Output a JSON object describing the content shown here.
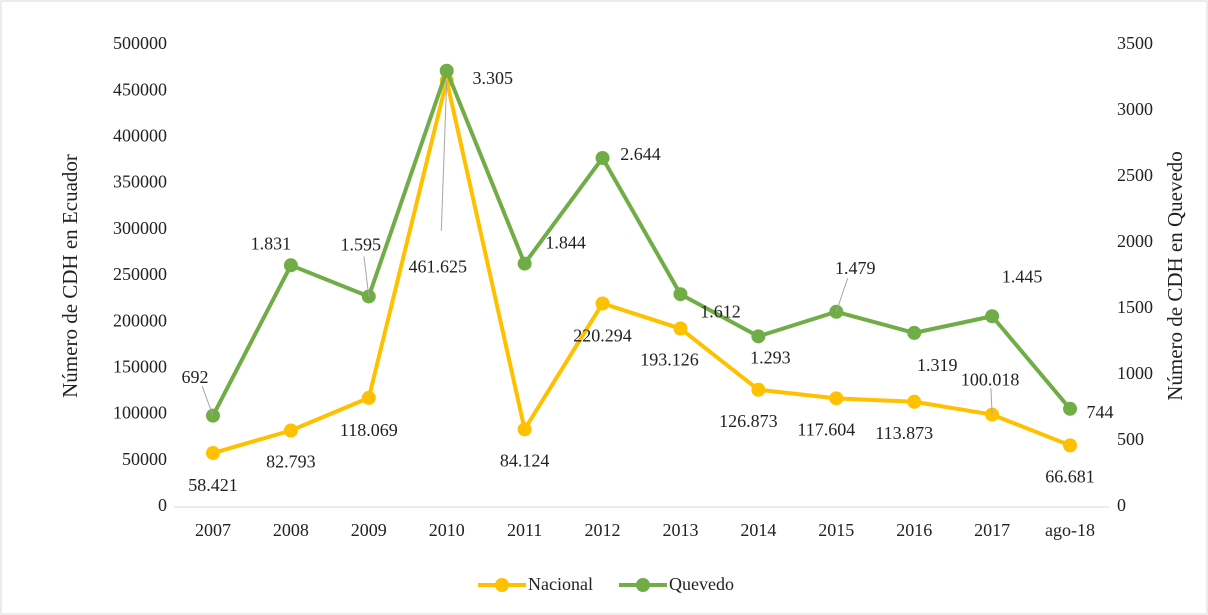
{
  "chart_data": {
    "type": "line",
    "categories": [
      "2007",
      "2008",
      "2009",
      "2010",
      "2011",
      "2012",
      "2013",
      "2014",
      "2015",
      "2016",
      "2017",
      "ago-18"
    ],
    "ylabel": "Número de CDH  en Ecuador",
    "y2label": "Número de CDH en Quevedo",
    "ylim": [
      0,
      500000
    ],
    "yticks": [
      0,
      50000,
      100000,
      150000,
      200000,
      250000,
      300000,
      350000,
      400000,
      450000,
      500000
    ],
    "y2lim": [
      0,
      3500
    ],
    "y2ticks": [
      0,
      500,
      1000,
      1500,
      2000,
      2500,
      3000,
      3500
    ],
    "legend": "bottom",
    "series": [
      {
        "name": "Nacional",
        "color": "#ffc000",
        "values": [
          58421,
          82793,
          118069,
          461625,
          84124,
          220294,
          193126,
          126873,
          117604,
          113873,
          100018,
          66681
        ],
        "value_labels": [
          "58.421",
          "82.793",
          "118.069",
          "461.625",
          "84.124",
          "220.294",
          "193.126",
          "126.873",
          "117.604",
          "113.873",
          "100.018",
          "66.681"
        ]
      },
      {
        "name": "Quevedo",
        "color": "#70ad47",
        "axis": "y2",
        "values": [
          692,
          1831,
          1595,
          3305,
          1844,
          2644,
          1612,
          1293,
          1479,
          1319,
          1445,
          744
        ],
        "value_labels": [
          "692",
          "1.831",
          "1.595",
          "3.305",
          "1.844",
          "2.644",
          "1.612",
          "1.293",
          "1.479",
          "1.319",
          "1.445",
          "744"
        ]
      }
    ]
  }
}
